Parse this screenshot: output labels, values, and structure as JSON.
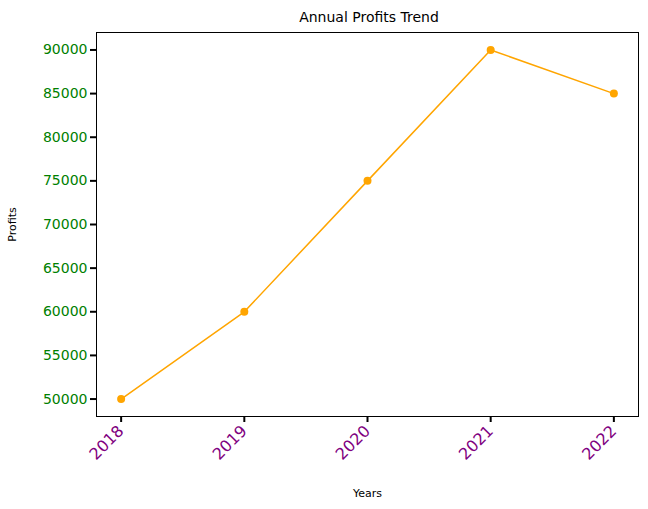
{
  "chart_data": {
    "type": "line",
    "title": "Annual Profits Trend",
    "x_label": "Years",
    "y_label": "Profits",
    "x": [
      2018,
      2019,
      2020,
      2021,
      2022
    ],
    "values": [
      50000,
      60000,
      75000,
      90000,
      85000
    ],
    "color": "orange",
    "marker": "o",
    "line_style": "solid",
    "xlim": [
      2017.8,
      2022.2
    ],
    "xticks": [
      2018,
      2019,
      2020,
      2021,
      2022
    ],
    "ylim": [
      48000,
      92000
    ],
    "yticks": [
      50000,
      55000,
      60000,
      65000,
      70000,
      75000,
      80000,
      85000,
      90000
    ],
    "grid": false
  }
}
